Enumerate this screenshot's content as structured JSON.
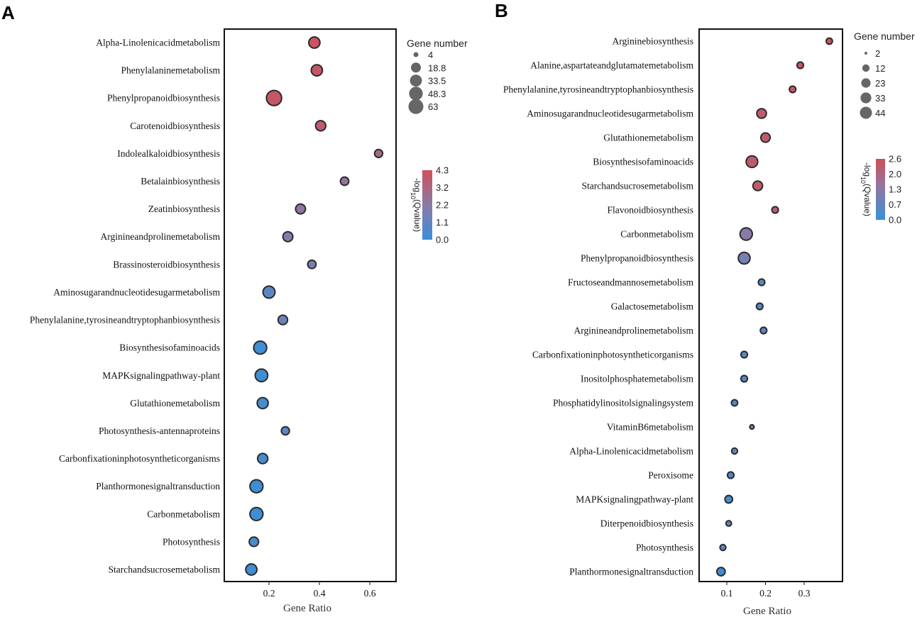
{
  "colors": {
    "low": "#3a8fd8",
    "mid": "#8a7aa8",
    "high": "#cf5058",
    "stroke": "#2b2b2b",
    "frame": "#111111",
    "legend_dot": "#666666"
  },
  "chart_data": [
    {
      "type": "scatter",
      "panel_label": "A",
      "xlabel": "Gene Ratio",
      "xlim": [
        0.02,
        0.7
      ],
      "xticks": [
        0.2,
        0.4,
        0.6
      ],
      "xtick_labels": [
        "0.2",
        "0.4",
        "0.6"
      ],
      "categories": [
        "Alpha-Linolenicacidmetabolism",
        "Phenylalaninemetabolism",
        "Phenylpropanoidbiosynthesis",
        "Carotenoidbiosynthesis",
        "Indolealkaloidbiosynthesis",
        "Betalainbiosynthesis",
        "Zeatinbiosynthesis",
        "Arginineandprolinemetabolism",
        "Brassinosteroidbiosynthesis",
        "Aminosugarandnucleotidesugarmetabolism",
        "Phenylalanine,tyrosineandtryptophanbiosynthesis",
        "Biosynthesisofaminoacids",
        "MAPKsignalingpathway-plant",
        "Glutathionemetabolism",
        "Photosynthesis-antennaproteins",
        "Carbonfixationinphotosyntheticorganisms",
        "Planthormonesignaltransduction",
        "Carbonmetabolism",
        "Photosynthesis",
        "Starchandsucrosemetabolism"
      ],
      "gene_ratio": [
        0.38,
        0.39,
        0.22,
        0.405,
        0.635,
        0.5,
        0.325,
        0.275,
        0.37,
        0.2,
        0.255,
        0.165,
        0.17,
        0.175,
        0.265,
        0.175,
        0.15,
        0.15,
        0.14,
        0.13
      ],
      "gene_number": [
        24,
        24,
        58,
        18,
        9,
        10,
        17,
        17,
        10,
        30,
        15,
        38,
        35,
        23,
        9,
        18,
        38,
        38,
        14,
        24
      ],
      "qvalue_log": [
        4.1,
        4.0,
        4.0,
        3.7,
        3.0,
        2.4,
        2.4,
        2.0,
        1.6,
        0.9,
        1.3,
        0.2,
        0.2,
        0.3,
        0.8,
        0.4,
        0.1,
        0.1,
        0.4,
        0.2
      ],
      "size_legend": {
        "title": "Gene number",
        "values": [
          4,
          18.8,
          33.5,
          48.3,
          63
        ],
        "labels": [
          "4",
          "18.8",
          "33.5",
          "48.3",
          "63"
        ]
      },
      "color_legend": {
        "title": "-log10(Qvalue)",
        "min": 0.0,
        "max": 4.3,
        "ticks": [
          "4.3",
          "3.2",
          "2.2",
          "1.1",
          "0.0"
        ]
      }
    },
    {
      "type": "scatter",
      "panel_label": "B",
      "xlabel": "Gene Ratio",
      "xlim": [
        0.04,
        0.385
      ],
      "xticks": [
        0.1,
        0.2,
        0.3
      ],
      "xtick_labels": [
        "0.1",
        "0.2",
        "0.3"
      ],
      "categories": [
        "Argininebiosynthesis",
        "Alanine,aspartateandglutamatemetabolism",
        "Phenylalanine,tyrosineandtryptophanbiosynthesis",
        "Aminosugarandnucleotidesugarmetabolism",
        "Glutathionemetabolism",
        "Biosynthesisofaminoacids",
        "Starchandsucrosemetabolism",
        "Flavonoidbiosynthesis",
        "Carbonmetabolism",
        "Phenylpropanoidbiosynthesis",
        "Fructoseandmannosemetabolism",
        "Galactosemetabolism",
        "Arginineandprolinemetabolism",
        "Carbonfixationinphotosyntheticorganisms",
        "Inositolphosphatemetabolism",
        "Phosphatidylinositolsignalingsystem",
        "VitaminB6metabolism",
        "Alpha-Linolenicacidmetabolism",
        "Peroxisome",
        "MAPKsignalingpathway-plant",
        "Diterpenoidbiosynthesis",
        "Photosynthesis",
        "Planthormonesignaltransduction"
      ],
      "gene_ratio": [
        0.365,
        0.29,
        0.27,
        0.19,
        0.2,
        0.165,
        0.18,
        0.225,
        0.15,
        0.145,
        0.19,
        0.185,
        0.195,
        0.145,
        0.145,
        0.12,
        0.165,
        0.12,
        0.11,
        0.105,
        0.105,
        0.09,
        0.085
      ],
      "gene_number": [
        7,
        8,
        8,
        22,
        20,
        35,
        22,
        8,
        40,
        36,
        8,
        8,
        8,
        8,
        8,
        7,
        3,
        6,
        8,
        12,
        5,
        6,
        15
      ],
      "qvalue_log": [
        2.5,
        2.4,
        2.4,
        2.3,
        2.3,
        2.3,
        2.3,
        2.2,
        1.3,
        1.0,
        0.5,
        0.5,
        0.6,
        0.5,
        0.5,
        0.4,
        0.8,
        0.6,
        0.3,
        0.2,
        0.5,
        0.4,
        0.1
      ],
      "size_legend": {
        "title": "Gene number",
        "values": [
          2,
          12,
          23,
          33,
          44
        ],
        "labels": [
          "2",
          "12",
          "23",
          "33",
          "44"
        ]
      },
      "color_legend": {
        "title": "-log10(Qvalue)",
        "min": 0.0,
        "max": 2.6,
        "ticks": [
          "2.6",
          "2.0",
          "1.3",
          "0.7",
          "0.0"
        ]
      }
    }
  ]
}
